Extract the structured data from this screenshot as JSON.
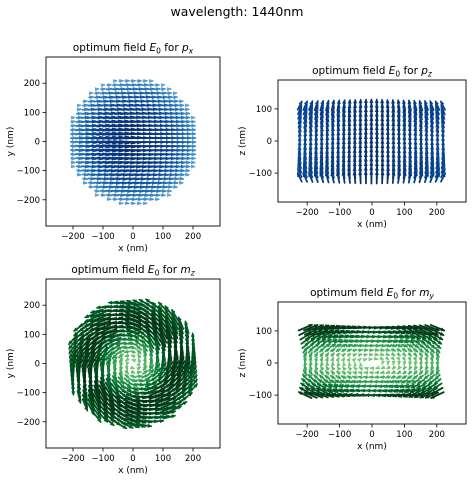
{
  "suptitle": "wavelength: 1440nm",
  "chart_data": [
    {
      "type": "quiver",
      "title_main": "optimum field ",
      "title_sym": "E",
      "title_sub": "0",
      "title_for": " for ",
      "title_var": "p",
      "title_var_sub": "x",
      "xlabel": "x (nm)",
      "ylabel": "y (nm)",
      "xlim": [
        -290,
        290
      ],
      "ylim": [
        -290,
        290
      ],
      "xticks": [
        -200,
        -100,
        0,
        100,
        200
      ],
      "yticks": [
        -200,
        -100,
        0,
        100,
        200
      ],
      "xtick_labels": [
        "−200",
        "−100",
        "0",
        "100",
        "200"
      ],
      "ytick_labels": [
        "−200",
        "−100",
        "0",
        "100",
        "200"
      ],
      "field": "px",
      "domain": "disk",
      "radius": 220,
      "colormap": "Blues"
    },
    {
      "type": "quiver",
      "title_main": "optimum field ",
      "title_sym": "E",
      "title_sub": "0",
      "title_for": " for ",
      "title_var": "p",
      "title_var_sub": "z",
      "xlabel": "x (nm)",
      "ylabel": "z (nm)",
      "xlim": [
        -290,
        290
      ],
      "ylim": [
        -190,
        190
      ],
      "xticks": [
        -200,
        -100,
        0,
        100,
        200
      ],
      "yticks": [
        -100,
        0,
        100
      ],
      "xtick_labels": [
        "−200",
        "−100",
        "0",
        "100",
        "200"
      ],
      "ytick_labels": [
        "−100",
        "0",
        "100"
      ],
      "field": "pz",
      "domain": "rect",
      "half_width": 225,
      "half_height": 115,
      "colormap": "Blues"
    },
    {
      "type": "quiver",
      "title_main": "optimum field ",
      "title_sym": "E",
      "title_sub": "0",
      "title_for": " for ",
      "title_var": "m",
      "title_var_sub": "z",
      "xlabel": "x (nm)",
      "ylabel": "y (nm)",
      "xlim": [
        -290,
        290
      ],
      "ylim": [
        -290,
        290
      ],
      "xticks": [
        -200,
        -100,
        0,
        100,
        200
      ],
      "yticks": [
        -200,
        -100,
        0,
        100,
        200
      ],
      "xtick_labels": [
        "−200",
        "−100",
        "0",
        "100",
        "200"
      ],
      "ytick_labels": [
        "−200",
        "−100",
        "0",
        "100",
        "200"
      ],
      "field": "mz",
      "domain": "disk",
      "radius": 220,
      "colormap": "Greens"
    },
    {
      "type": "quiver",
      "title_main": "optimum field ",
      "title_sym": "E",
      "title_sub": "0",
      "title_for": " for ",
      "title_var": "m",
      "title_var_sub": "y",
      "xlabel": "x (nm)",
      "ylabel": "z (nm)",
      "xlim": [
        -290,
        290
      ],
      "ylim": [
        -190,
        190
      ],
      "xticks": [
        -200,
        -100,
        0,
        100,
        200
      ],
      "yticks": [
        -100,
        0,
        100
      ],
      "xtick_labels": [
        "−200",
        "−100",
        "0",
        "100",
        "200"
      ],
      "ytick_labels": [
        "−100",
        "0",
        "100"
      ],
      "field": "my",
      "domain": "rect",
      "half_width": 215,
      "half_height": 110,
      "colormap": "Greens"
    }
  ]
}
